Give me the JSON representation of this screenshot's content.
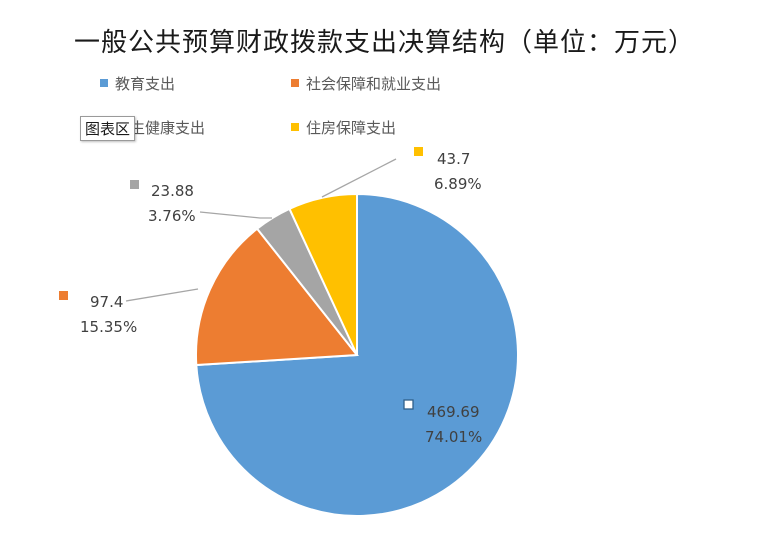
{
  "chart_data": {
    "type": "pie",
    "title": "一般公共预算财政拨款支出决算结构（单位：万元）",
    "slices": [
      {
        "name": "教育支出",
        "value": 469.69,
        "percent": "74.01%",
        "color": "#5B9BD5"
      },
      {
        "name": "社会保障和就业支出",
        "value": 97.4,
        "percent": "15.35%",
        "color": "#ED7D31"
      },
      {
        "name": "卫生健康支出",
        "value": 23.88,
        "percent": "3.76%",
        "color": "#A5A5A5"
      },
      {
        "name": "住房保障支出",
        "value": 43.7,
        "percent": "6.89%",
        "color": "#FFC000"
      }
    ],
    "legend_position": "top"
  },
  "tooltip": {
    "text": "图表区"
  }
}
